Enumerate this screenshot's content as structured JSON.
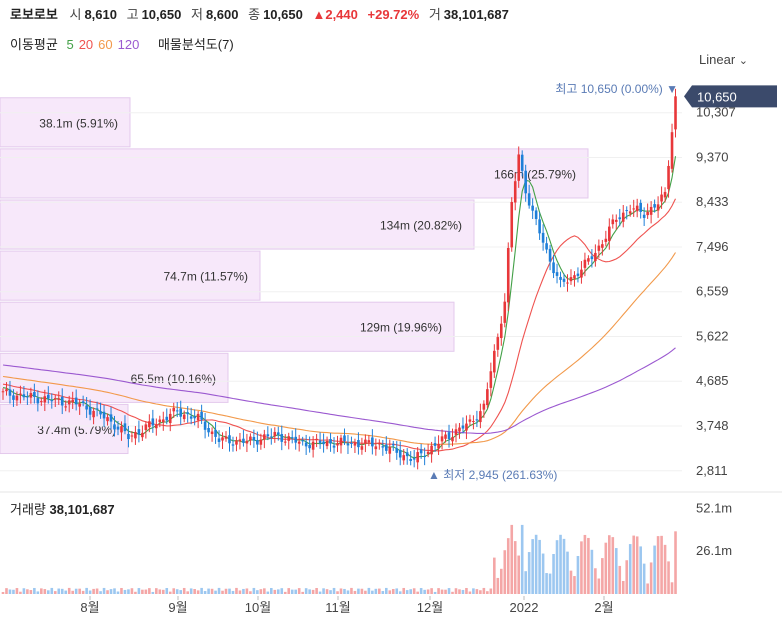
{
  "header": {
    "stock_name": "로보로보",
    "open_label": "시",
    "open": "8,610",
    "high_label": "고",
    "high": "10,650",
    "low_label": "저",
    "low": "8,600",
    "close_label": "종",
    "close": "10,650",
    "change": "▲2,440",
    "change_pct": "+29.72%",
    "volume_label": "거",
    "volume": "38,101,687"
  },
  "moving_average": {
    "label": "이동평균",
    "periods": [
      {
        "text": "5",
        "color": "#43a047"
      },
      {
        "text": "20",
        "color": "#ef5350"
      },
      {
        "text": "60",
        "color": "#f2994a"
      },
      {
        "text": "120",
        "color": "#9b59d0"
      }
    ],
    "profile_label": "매물분석도(7)"
  },
  "scale_button": "Linear",
  "colors": {
    "up": "#e8373a",
    "down": "#1e7fd8",
    "profile": "#efd6f5",
    "price_tag": "#3b4a6b"
  },
  "chart_data": {
    "type": "candlestick",
    "y_ticks": [
      "10,307",
      "9,370",
      "8,433",
      "7,496",
      "6,559",
      "5,622",
      "4,685",
      "3,748",
      "2,811"
    ],
    "y_tick_values": [
      10307,
      9370,
      8433,
      7496,
      6559,
      5622,
      4685,
      3748,
      2811
    ],
    "ylim": [
      2450,
      10950
    ],
    "x_labels": [
      "8월",
      "9월",
      "10월",
      "11월",
      "12월",
      "2022",
      "2월"
    ],
    "current_price_tag": "10,650",
    "max_annotation": "최고 10,650 (0.00%) ▼",
    "min_annotation": "▲ 최저 2,945 (261.63%)",
    "volume_profile": [
      {
        "label": "38.1m (5.91%)",
        "price_low": 9550,
        "price_high": 10620
      },
      {
        "label": "166m (25.79%)",
        "price_low": 8480,
        "price_high": 9550
      },
      {
        "label": "134m (20.82%)",
        "price_low": 7410,
        "price_high": 8480
      },
      {
        "label": "74.7m (11.57%)",
        "price_low": 6340,
        "price_high": 7410
      },
      {
        "label": "129m (19.96%)",
        "price_low": 5270,
        "price_high": 6340
      },
      {
        "label": "65.5m (10.16%)",
        "price_low": 4200,
        "price_high": 5270
      },
      {
        "label": "37.4m (5.79%)",
        "price_low": 3130,
        "price_high": 4200
      }
    ],
    "volume_panel": {
      "label": "거래량",
      "value": "38,101,687",
      "y_ticks": [
        "52.1m",
        "26.1m"
      ],
      "y_tick_values": [
        52.1,
        26.1
      ],
      "ylim": [
        0,
        62
      ]
    }
  }
}
